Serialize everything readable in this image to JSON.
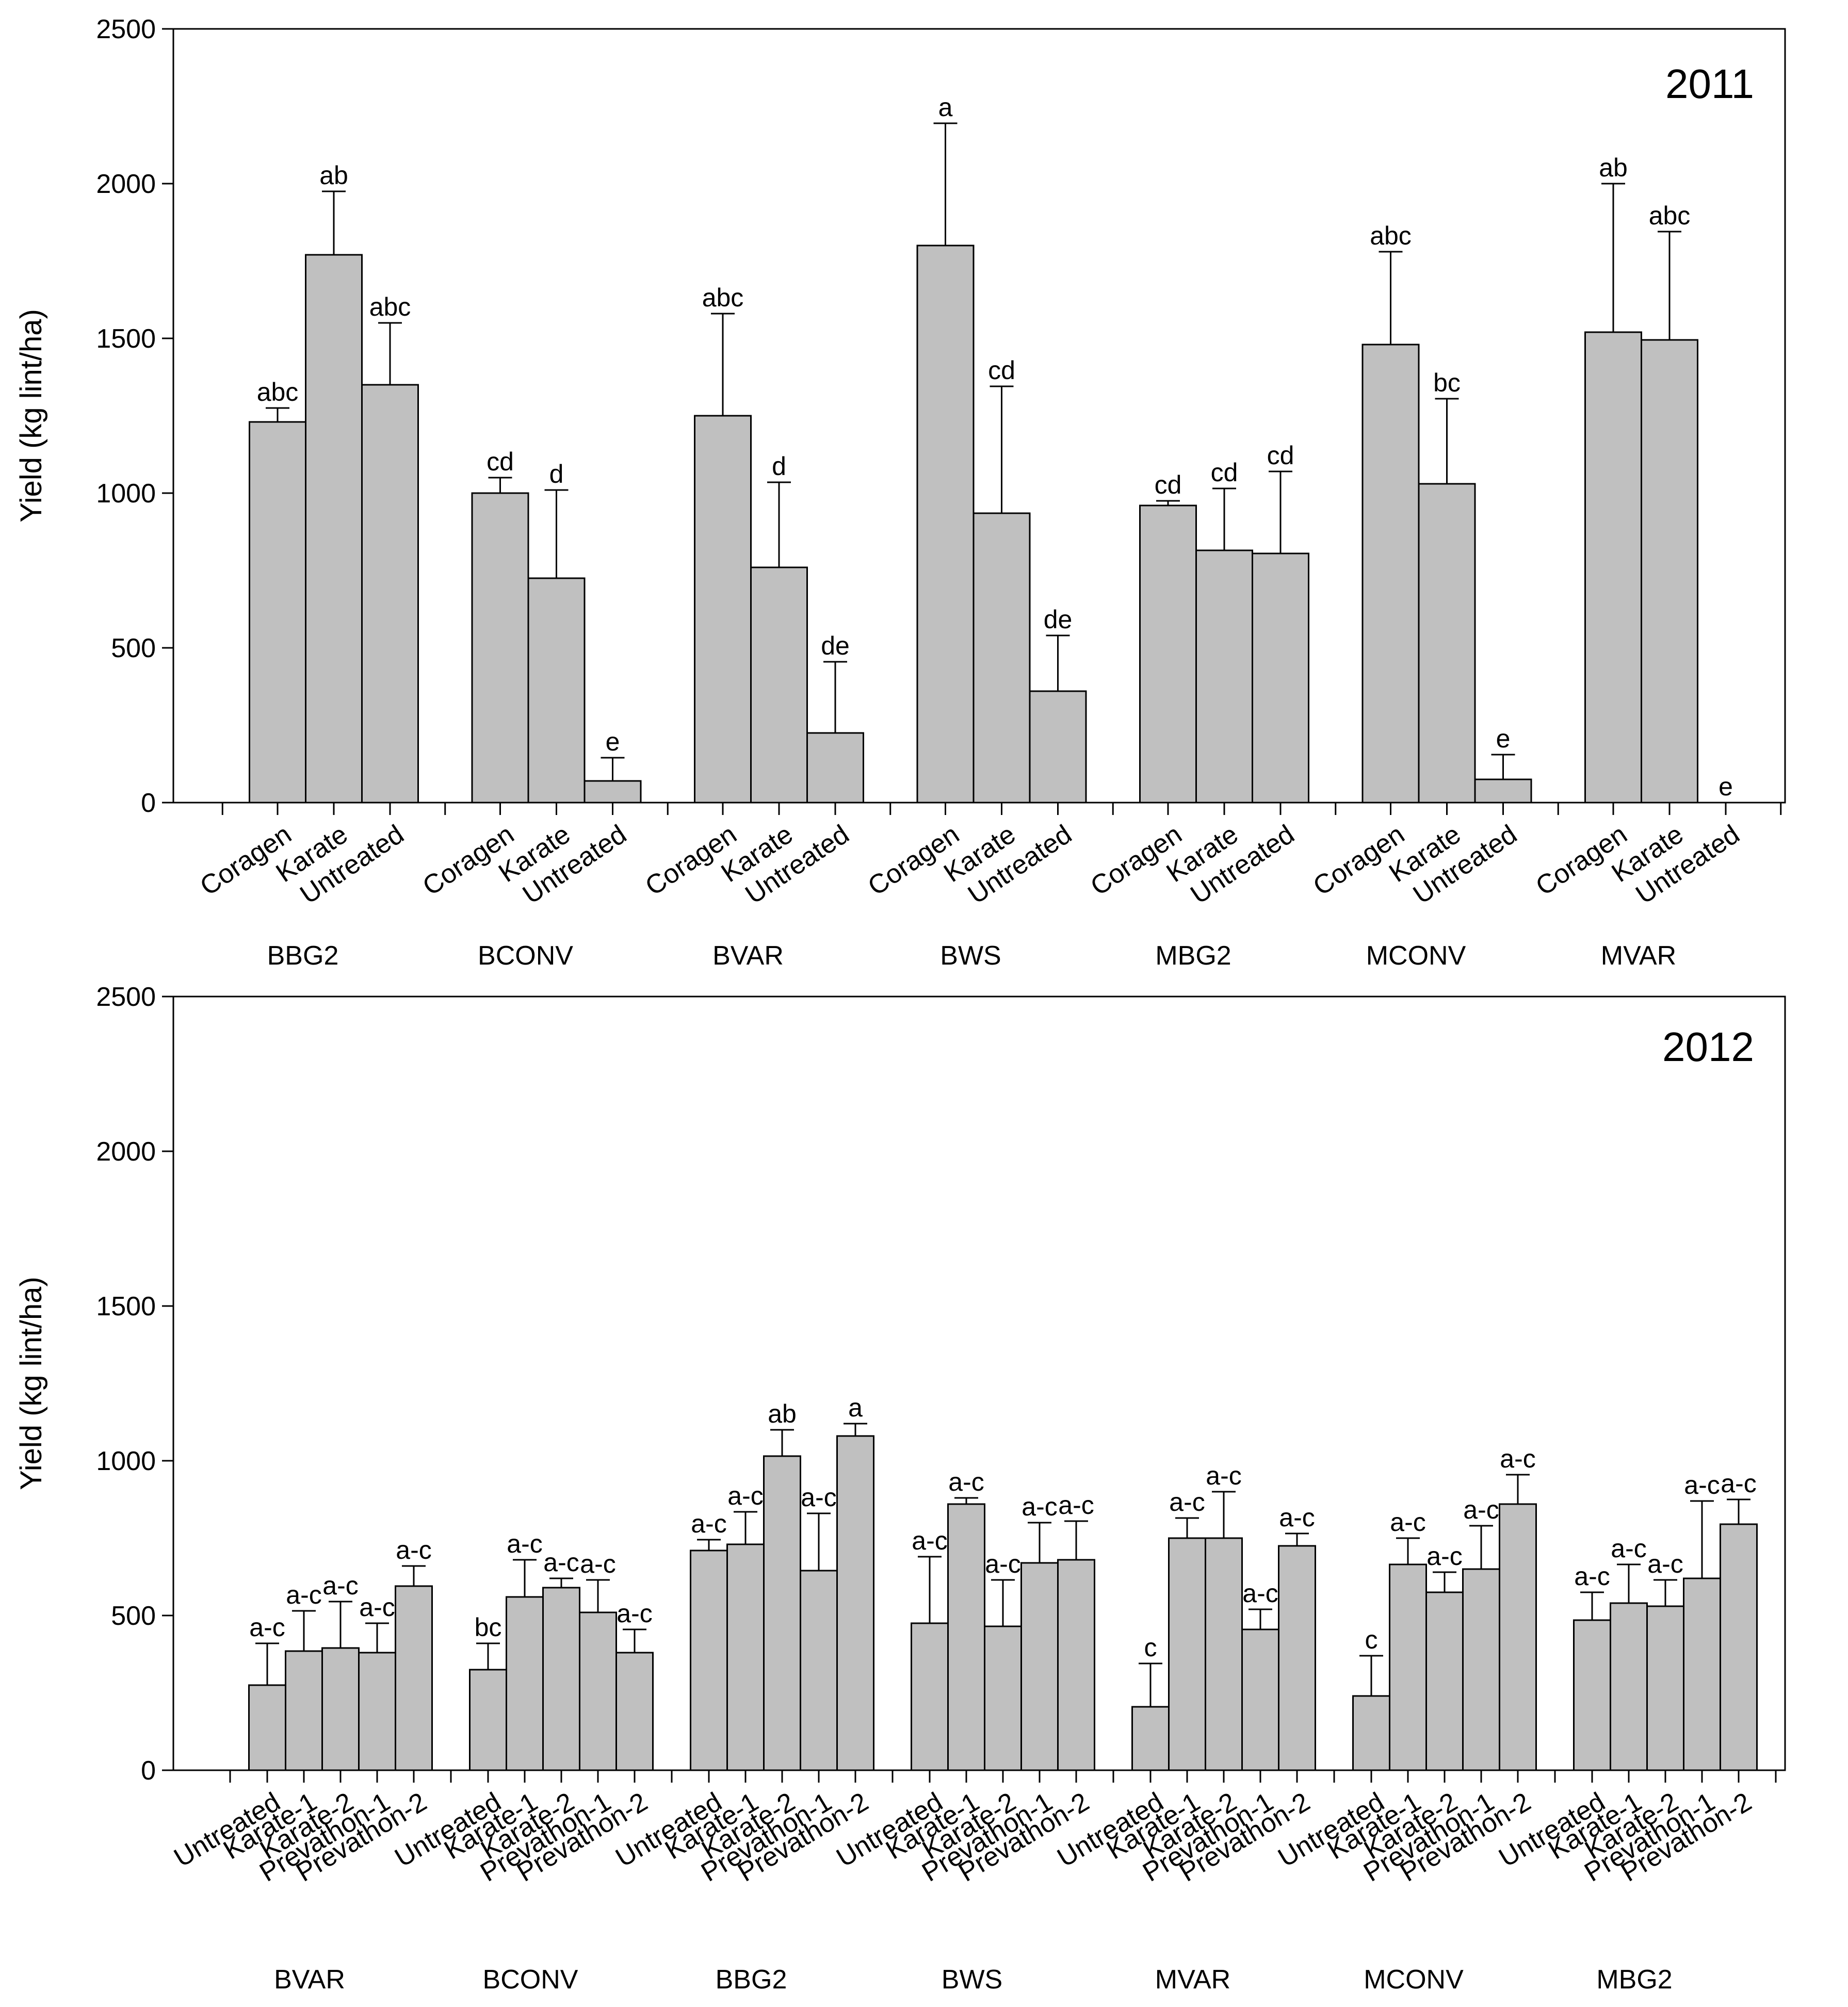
{
  "chart_data": [
    {
      "type": "bar",
      "title": "2011",
      "ylabel": "Yield (kg lint/ha)",
      "ylim": [
        0,
        2500
      ],
      "yticks": [
        0,
        500,
        1000,
        1500,
        2000,
        2500
      ],
      "groups": [
        {
          "name": "BBG2",
          "bars": [
            {
              "category": "Coragen",
              "value": 1230,
              "error": 45,
              "sig": "abc"
            },
            {
              "category": "Karate",
              "value": 1770,
              "error": 205,
              "sig": "ab"
            },
            {
              "category": "Untreated",
              "value": 1350,
              "error": 200,
              "sig": "abc"
            }
          ]
        },
        {
          "name": "BCONV",
          "bars": [
            {
              "category": "Coragen",
              "value": 1000,
              "error": 50,
              "sig": "cd"
            },
            {
              "category": "Karate",
              "value": 725,
              "error": 285,
              "sig": "d"
            },
            {
              "category": "Untreated",
              "value": 70,
              "error": 75,
              "sig": "e"
            }
          ]
        },
        {
          "name": "BVAR",
          "bars": [
            {
              "category": "Coragen",
              "value": 1250,
              "error": 330,
              "sig": "abc"
            },
            {
              "category": "Karate",
              "value": 760,
              "error": 275,
              "sig": "d"
            },
            {
              "category": "Untreated",
              "value": 225,
              "error": 230,
              "sig": "de"
            }
          ]
        },
        {
          "name": "BWS",
          "bars": [
            {
              "category": "Coragen",
              "value": 1800,
              "error": 395,
              "sig": "a"
            },
            {
              "category": "Karate",
              "value": 935,
              "error": 410,
              "sig": "cd"
            },
            {
              "category": "Untreated",
              "value": 360,
              "error": 180,
              "sig": "de"
            }
          ]
        },
        {
          "name": "MBG2",
          "bars": [
            {
              "category": "Coragen",
              "value": 960,
              "error": 15,
              "sig": "cd"
            },
            {
              "category": "Karate",
              "value": 815,
              "error": 200,
              "sig": "cd"
            },
            {
              "category": "Untreated",
              "value": 805,
              "error": 265,
              "sig": "cd"
            }
          ]
        },
        {
          "name": "MCONV",
          "bars": [
            {
              "category": "Coragen",
              "value": 1480,
              "error": 300,
              "sig": "abc"
            },
            {
              "category": "Karate",
              "value": 1030,
              "error": 275,
              "sig": "bc"
            },
            {
              "category": "Untreated",
              "value": 75,
              "error": 80,
              "sig": "e"
            }
          ]
        },
        {
          "name": "MVAR",
          "bars": [
            {
              "category": "Coragen",
              "value": 1520,
              "error": 480,
              "sig": "ab"
            },
            {
              "category": "Karate",
              "value": 1495,
              "error": 350,
              "sig": "abc"
            },
            {
              "category": "Untreated",
              "value": 0,
              "error": 0,
              "sig": "e"
            }
          ]
        }
      ]
    },
    {
      "type": "bar",
      "title": "2012",
      "ylabel": "Yield (kg lint/ha)",
      "ylim": [
        0,
        2500
      ],
      "yticks": [
        0,
        500,
        1000,
        1500,
        2000,
        2500
      ],
      "groups": [
        {
          "name": "BVAR",
          "bars": [
            {
              "category": "Untreated",
              "value": 275,
              "error": 135,
              "sig": "a-c"
            },
            {
              "category": "Karate-1",
              "value": 385,
              "error": 130,
              "sig": "a-c"
            },
            {
              "category": "Karate-2",
              "value": 395,
              "error": 150,
              "sig": "a-c"
            },
            {
              "category": "Prevathon-1",
              "value": 380,
              "error": 95,
              "sig": "a-c"
            },
            {
              "category": "Prevathon-2",
              "value": 595,
              "error": 65,
              "sig": "a-c"
            }
          ]
        },
        {
          "name": "BCONV",
          "bars": [
            {
              "category": "Untreated",
              "value": 325,
              "error": 85,
              "sig": "bc"
            },
            {
              "category": "Karate-1",
              "value": 560,
              "error": 120,
              "sig": "a-c"
            },
            {
              "category": "Karate-2",
              "value": 590,
              "error": 30,
              "sig": "a-c"
            },
            {
              "category": "Prevathon-1",
              "value": 510,
              "error": 105,
              "sig": "a-c"
            },
            {
              "category": "Prevathon-2",
              "value": 380,
              "error": 75,
              "sig": "a-c"
            }
          ]
        },
        {
          "name": "BBG2",
          "bars": [
            {
              "category": "Untreated",
              "value": 710,
              "error": 35,
              "sig": "a-c"
            },
            {
              "category": "Karate-1",
              "value": 730,
              "error": 105,
              "sig": "a-c"
            },
            {
              "category": "Karate-2",
              "value": 1015,
              "error": 85,
              "sig": "ab"
            },
            {
              "category": "Prevathon-1",
              "value": 645,
              "error": 185,
              "sig": "a-c"
            },
            {
              "category": "Prevathon-2",
              "value": 1080,
              "error": 40,
              "sig": "a"
            }
          ]
        },
        {
          "name": "BWS",
          "bars": [
            {
              "category": "Untreated",
              "value": 475,
              "error": 215,
              "sig": "a-c"
            },
            {
              "category": "Karate-1",
              "value": 860,
              "error": 20,
              "sig": "a-c"
            },
            {
              "category": "Karate-2",
              "value": 465,
              "error": 150,
              "sig": "a-c"
            },
            {
              "category": "Prevathon-1",
              "value": 670,
              "error": 130,
              "sig": "a-c"
            },
            {
              "category": "Prevathon-2",
              "value": 680,
              "error": 125,
              "sig": "a-c"
            }
          ]
        },
        {
          "name": "MVAR",
          "bars": [
            {
              "category": "Untreated",
              "value": 205,
              "error": 140,
              "sig": "c"
            },
            {
              "category": "Karate-1",
              "value": 750,
              "error": 65,
              "sig": "a-c"
            },
            {
              "category": "Karate-2",
              "value": 750,
              "error": 150,
              "sig": "a-c"
            },
            {
              "category": "Prevathon-1",
              "value": 455,
              "error": 65,
              "sig": "a-c"
            },
            {
              "category": "Prevathon-2",
              "value": 725,
              "error": 40,
              "sig": "a-c"
            }
          ]
        },
        {
          "name": "MCONV",
          "bars": [
            {
              "category": "Untreated",
              "value": 240,
              "error": 130,
              "sig": "c"
            },
            {
              "category": "Karate-1",
              "value": 665,
              "error": 85,
              "sig": "a-c"
            },
            {
              "category": "Karate-2",
              "value": 575,
              "error": 65,
              "sig": "a-c"
            },
            {
              "category": "Prevathon-1",
              "value": 650,
              "error": 140,
              "sig": "a-c"
            },
            {
              "category": "Prevathon-2",
              "value": 860,
              "error": 95,
              "sig": "a-c"
            }
          ]
        },
        {
          "name": "MBG2",
          "bars": [
            {
              "category": "Untreated",
              "value": 485,
              "error": 90,
              "sig": "a-c"
            },
            {
              "category": "Karate-1",
              "value": 540,
              "error": 125,
              "sig": "a-c"
            },
            {
              "category": "Karate-2",
              "value": 530,
              "error": 85,
              "sig": "a-c"
            },
            {
              "category": "Prevathon-1",
              "value": 620,
              "error": 250,
              "sig": "a-c"
            },
            {
              "category": "Prevathon-2",
              "value": 795,
              "error": 80,
              "sig": "a-c"
            }
          ]
        }
      ]
    }
  ]
}
